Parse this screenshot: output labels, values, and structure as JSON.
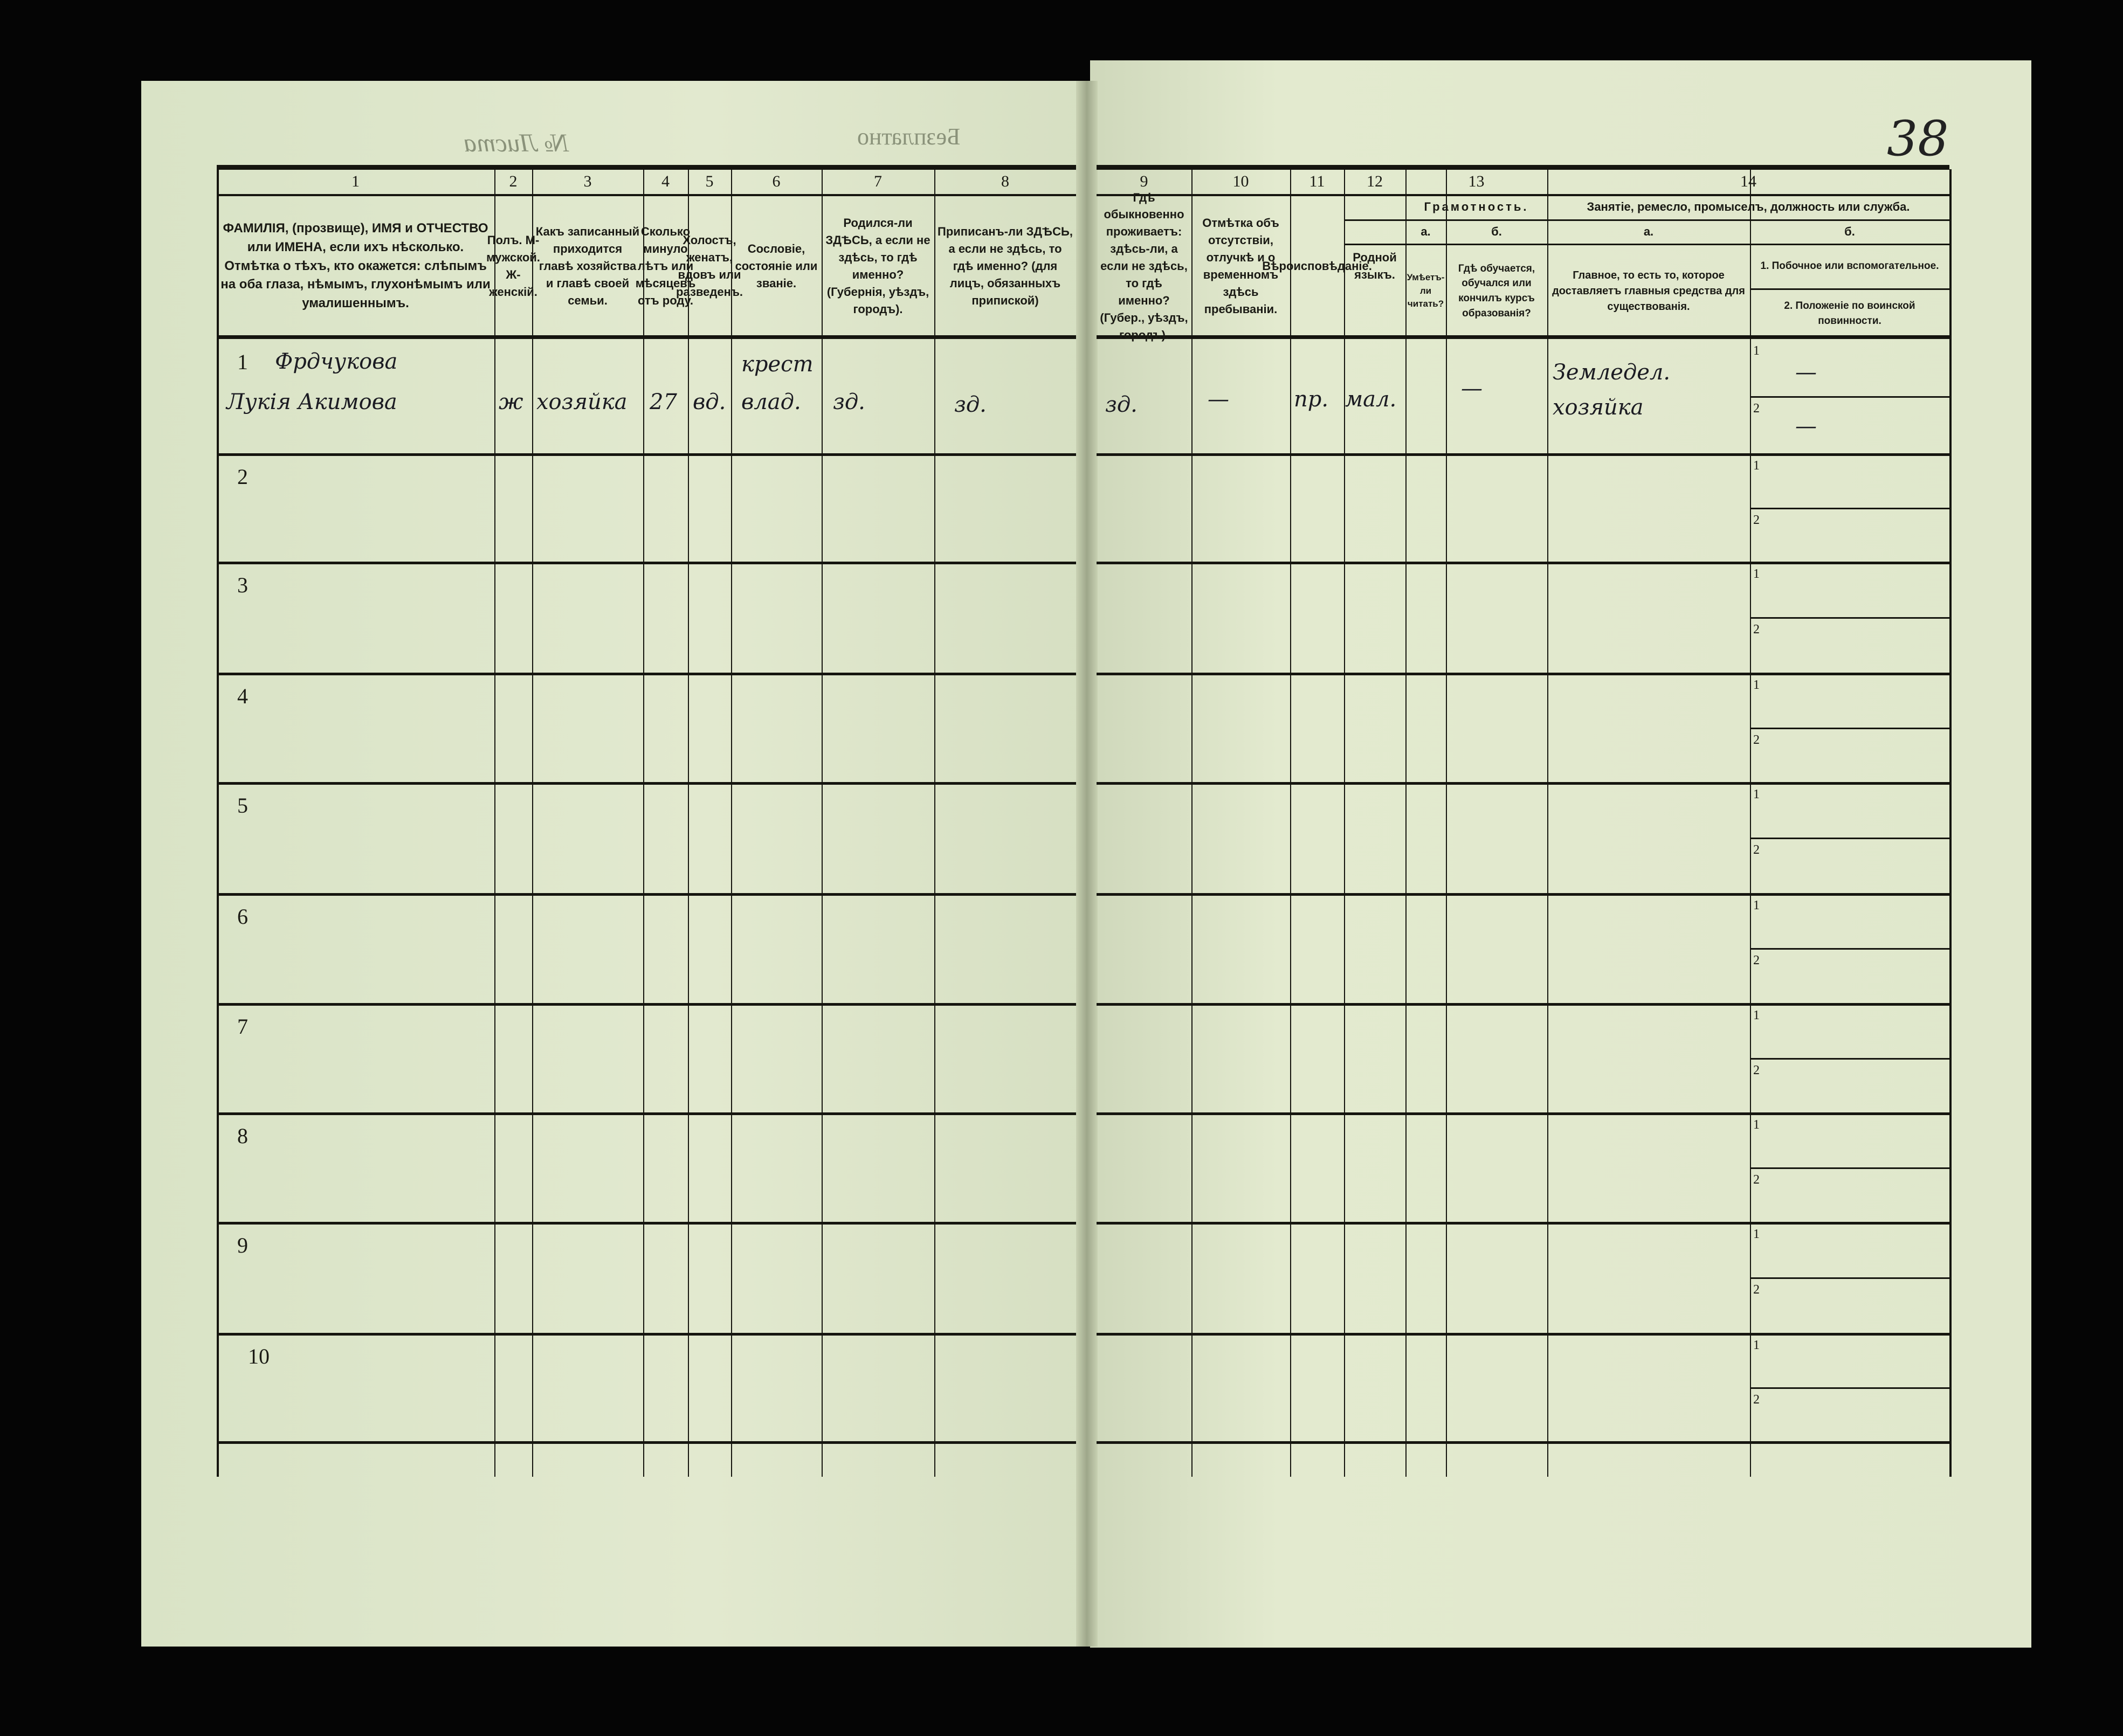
{
  "header": {
    "stamp": "Безплатно",
    "sheet_no": "№ Листа",
    "page_number": "38"
  },
  "columns": [
    {
      "num": "1",
      "title": "ФАМИЛІЯ, (прозвище), ИМЯ и ОТЧЕСТВО или ИМЕНА, если ихъ нѣсколько. Отмѣтка о тѣхъ, кто окажется: слѣпымъ на оба глаза, нѣмымъ, глухонѣмымъ или умалишеннымъ."
    },
    {
      "num": "2",
      "title": "Полъ. М-мужской. Ж-женскій."
    },
    {
      "num": "3",
      "title": "Какъ записанный приходится главѣ хозяйства и главѣ своей семьи."
    },
    {
      "num": "4",
      "title": "Сколько минуло лѣтъ или мѣсяцевъ отъ роду."
    },
    {
      "num": "5",
      "title": "Холостъ, женатъ, вдовъ или разведенъ."
    },
    {
      "num": "6",
      "title": "Сословіе, состояніе или званіе."
    },
    {
      "num": "7",
      "title": "Родился-ли ЗДѢСЬ, а если не здѣсь, то гдѣ именно? (Губернія, уѣздъ, городъ)."
    },
    {
      "num": "8",
      "title": "Приписанъ-ли ЗДѢСЬ, а если не здѣсь, то гдѣ именно? (для лицъ, обязанныхъ припиской)"
    },
    {
      "num": "9",
      "title": "Гдѣ обыкновенно проживаетъ: здѣсь-ли, а если не здѣсь, то гдѣ именно? (Губер., уѣздъ, городъ)."
    },
    {
      "num": "10",
      "title": "Отмѣтка объ отсутствіи, отлучкѣ и о временномъ здѣсь пребываніи."
    },
    {
      "num": "11",
      "title": "Вѣроисповѣданіе."
    },
    {
      "num": "12",
      "title": "Родной языкъ."
    },
    {
      "num": "13",
      "group": "Грамотность.",
      "a_label": "а.",
      "a_title": "Умѣетъ-ли читать?",
      "b_label": "б.",
      "b_title": "Гдѣ обучается, обучался или кончилъ курсъ образованія?"
    },
    {
      "num": "14",
      "group": "Занятіе, ремесло, промыселъ, должность или служба.",
      "a_label": "а.",
      "a_title": "Главное, то есть то, которое доставляетъ главныя средства для существованія.",
      "b_label": "б.",
      "b_title_1": "1. Побочное или вспомогательное.",
      "b_title_2": "2. Положеніе по воинской повинности."
    }
  ],
  "rows": [
    {
      "num": "1",
      "surname": "Фрдчукова",
      "name": "Лукія Акимова",
      "sex": "ж",
      "relation": "хозяйка",
      "age": "27",
      "marital": "вд.",
      "estate_1": "крест",
      "estate_2": "влад.",
      "born": "зд.",
      "registered": "зд.",
      "resides": "зд.",
      "absence": "—",
      "religion": "пр.",
      "language": "мал.",
      "literacy": "—",
      "occupation_1": "Земледел.",
      "occupation_2": "хозяйка",
      "side_1": "—",
      "side_2": "—"
    },
    {
      "num": "2"
    },
    {
      "num": "3"
    },
    {
      "num": "4"
    },
    {
      "num": "5"
    },
    {
      "num": "6"
    },
    {
      "num": "7"
    },
    {
      "num": "8"
    },
    {
      "num": "9"
    },
    {
      "num": "10"
    }
  ],
  "sub_labels": [
    "1",
    "2"
  ]
}
